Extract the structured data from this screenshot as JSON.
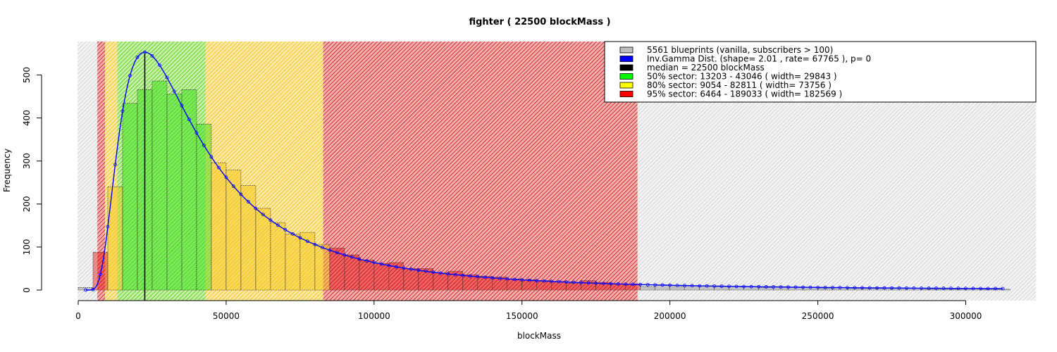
{
  "chart_data": {
    "type": "bar",
    "title": "fighter ( 22500 blockMass )",
    "xlabel": "blockMass",
    "ylabel": "Frequency",
    "xlim": [
      0,
      325000
    ],
    "ylim": [
      0,
      560
    ],
    "x_ticks": [
      0,
      50000,
      100000,
      150000,
      200000,
      250000,
      300000
    ],
    "y_ticks": [
      0,
      100,
      200,
      300,
      400,
      500
    ],
    "bin_width": 5000,
    "bins": [
      {
        "x0": 0,
        "x1": 5000,
        "count": 6
      },
      {
        "x0": 5000,
        "x1": 10000,
        "count": 88
      },
      {
        "x0": 10000,
        "x1": 15000,
        "count": 240
      },
      {
        "x0": 15000,
        "x1": 20000,
        "count": 434
      },
      {
        "x0": 20000,
        "x1": 25000,
        "count": 466
      },
      {
        "x0": 25000,
        "x1": 30000,
        "count": 486
      },
      {
        "x0": 30000,
        "x1": 35000,
        "count": 456
      },
      {
        "x0": 35000,
        "x1": 40000,
        "count": 466
      },
      {
        "x0": 40000,
        "x1": 45000,
        "count": 386
      },
      {
        "x0": 45000,
        "x1": 50000,
        "count": 296
      },
      {
        "x0": 50000,
        "x1": 55000,
        "count": 279
      },
      {
        "x0": 55000,
        "x1": 60000,
        "count": 243
      },
      {
        "x0": 60000,
        "x1": 65000,
        "count": 190
      },
      {
        "x0": 65000,
        "x1": 70000,
        "count": 157
      },
      {
        "x0": 70000,
        "x1": 75000,
        "count": 130
      },
      {
        "x0": 75000,
        "x1": 80000,
        "count": 134
      },
      {
        "x0": 80000,
        "x1": 85000,
        "count": 106
      },
      {
        "x0": 85000,
        "x1": 90000,
        "count": 98
      },
      {
        "x0": 90000,
        "x1": 95000,
        "count": 82
      },
      {
        "x0": 95000,
        "x1": 100000,
        "count": 70
      },
      {
        "x0": 100000,
        "x1": 105000,
        "count": 62
      },
      {
        "x0": 105000,
        "x1": 110000,
        "count": 64
      },
      {
        "x0": 110000,
        "x1": 115000,
        "count": 50
      },
      {
        "x0": 115000,
        "x1": 120000,
        "count": 50
      },
      {
        "x0": 120000,
        "x1": 125000,
        "count": 40
      },
      {
        "x0": 125000,
        "x1": 130000,
        "count": 44
      },
      {
        "x0": 130000,
        "x1": 135000,
        "count": 36
      },
      {
        "x0": 135000,
        "x1": 140000,
        "count": 32
      },
      {
        "x0": 140000,
        "x1": 145000,
        "count": 30
      },
      {
        "x0": 145000,
        "x1": 150000,
        "count": 26
      },
      {
        "x0": 150000,
        "x1": 155000,
        "count": 24
      },
      {
        "x0": 155000,
        "x1": 160000,
        "count": 22
      },
      {
        "x0": 160000,
        "x1": 165000,
        "count": 20
      },
      {
        "x0": 165000,
        "x1": 170000,
        "count": 16
      },
      {
        "x0": 170000,
        "x1": 175000,
        "count": 22
      },
      {
        "x0": 175000,
        "x1": 180000,
        "count": 18
      },
      {
        "x0": 180000,
        "x1": 185000,
        "count": 14
      },
      {
        "x0": 185000,
        "x1": 190000,
        "count": 14
      },
      {
        "x0": 190000,
        "x1": 195000,
        "count": 8
      },
      {
        "x0": 195000,
        "x1": 200000,
        "count": 12
      },
      {
        "x0": 200000,
        "x1": 205000,
        "count": 8
      },
      {
        "x0": 205000,
        "x1": 210000,
        "count": 10
      },
      {
        "x0": 210000,
        "x1": 215000,
        "count": 10
      },
      {
        "x0": 215000,
        "x1": 220000,
        "count": 8
      },
      {
        "x0": 220000,
        "x1": 225000,
        "count": 8
      },
      {
        "x0": 225000,
        "x1": 230000,
        "count": 8
      },
      {
        "x0": 230000,
        "x1": 235000,
        "count": 6
      },
      {
        "x0": 235000,
        "x1": 240000,
        "count": 8
      },
      {
        "x0": 240000,
        "x1": 245000,
        "count": 6
      },
      {
        "x0": 245000,
        "x1": 250000,
        "count": 6
      },
      {
        "x0": 250000,
        "x1": 255000,
        "count": 4
      },
      {
        "x0": 255000,
        "x1": 260000,
        "count": 6
      },
      {
        "x0": 260000,
        "x1": 265000,
        "count": 4
      },
      {
        "x0": 265000,
        "x1": 270000,
        "count": 4
      },
      {
        "x0": 270000,
        "x1": 275000,
        "count": 4
      },
      {
        "x0": 275000,
        "x1": 280000,
        "count": 4
      },
      {
        "x0": 280000,
        "x1": 285000,
        "count": 4
      },
      {
        "x0": 285000,
        "x1": 290000,
        "count": 2
      },
      {
        "x0": 290000,
        "x1": 295000,
        "count": 2
      },
      {
        "x0": 295000,
        "x1": 300000,
        "count": 2
      },
      {
        "x0": 300000,
        "x1": 305000,
        "count": 4
      },
      {
        "x0": 305000,
        "x1": 310000,
        "count": 2
      },
      {
        "x0": 310000,
        "x1": 315000,
        "count": 2
      }
    ],
    "curve": {
      "distribution": "Inv.Gamma",
      "shape": 2.01,
      "rate": 67765,
      "x_range": [
        2500,
        312500
      ]
    },
    "median": 22500,
    "sectors": [
      {
        "name": "95% sector",
        "from": 6464,
        "to": 189033,
        "color": "#e00000"
      },
      {
        "name": "80% sector",
        "from": 9054,
        "to": 82811,
        "color": "#f5c400"
      },
      {
        "name": "50% sector",
        "from": 13203,
        "to": 43046,
        "color": "#22dd00"
      }
    ],
    "legend_position": "top-right",
    "legend": [
      {
        "color": "#bebebe",
        "text": "5561 blueprints (vanilla, subscribers > 100)"
      },
      {
        "color": "#0000ff",
        "text": "Inv.Gamma Dist. (shape= 2.01 , rate= 67765 ), p= 0"
      },
      {
        "color": "#000000",
        "text": "median = 22500 blockMass"
      },
      {
        "color": "#00ff00",
        "text": "50% sector:  13203  -  43046  ( width= 29843 )"
      },
      {
        "color": "#ffff00",
        "text": "80% sector:  9054  -  82811  ( width= 73756 )"
      },
      {
        "color": "#ff0000",
        "text": "95% sector:  6464  -  189033  ( width= 182569 )"
      }
    ]
  }
}
